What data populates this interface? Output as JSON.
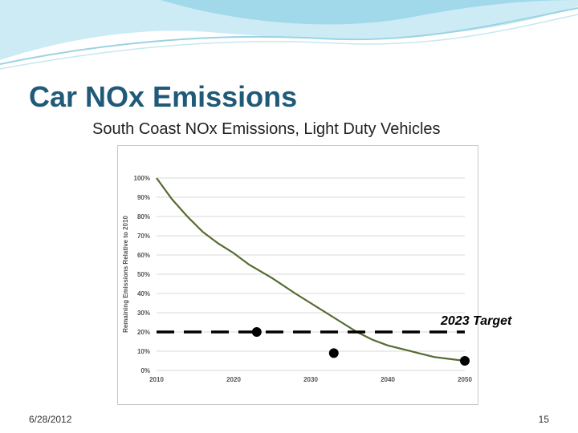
{
  "slide": {
    "title": "Car NOx Emissions",
    "footer_date": "6/28/2012",
    "page_number": "15"
  },
  "colors": {
    "title": "#1f5a78",
    "line": "#556b2f",
    "grid": "#d9d9d9",
    "target_line": "#000000",
    "decor_wave": "#8fd0e6"
  },
  "chart_data": {
    "type": "line",
    "title": "South Coast NOx Emissions, Light Duty Vehicles",
    "ylabel": "Remaining Emissions Relative to 2010",
    "xlabel": "",
    "x_ticks": [
      "2010",
      "2020",
      "2030",
      "2040",
      "2050"
    ],
    "y_ticks": [
      "0%",
      "10%",
      "20%",
      "30%",
      "40%",
      "50%",
      "60%",
      "70%",
      "80%",
      "90%",
      "100%"
    ],
    "xlim": [
      2010,
      2050
    ],
    "ylim": [
      0,
      100
    ],
    "grid": true,
    "series": [
      {
        "x": [
          2010,
          2012,
          2014,
          2016,
          2018,
          2020,
          2022,
          2025,
          2028,
          2030,
          2032,
          2034,
          2036,
          2038,
          2040,
          2042,
          2044,
          2046,
          2048,
          2050
        ],
        "y": [
          100,
          89,
          80,
          72,
          66,
          61,
          55,
          48,
          40,
          35,
          30,
          25,
          20,
          16,
          13,
          11,
          9,
          7,
          6,
          5
        ]
      }
    ],
    "annotations": {
      "target_label": "2023 Target",
      "target_value": 20,
      "target_x_range": [
        2010,
        2050
      ],
      "markers": [
        {
          "x": 2023,
          "y": 20
        },
        {
          "x": 2033,
          "y": 9
        },
        {
          "x": 2050,
          "y": 5
        }
      ]
    }
  }
}
